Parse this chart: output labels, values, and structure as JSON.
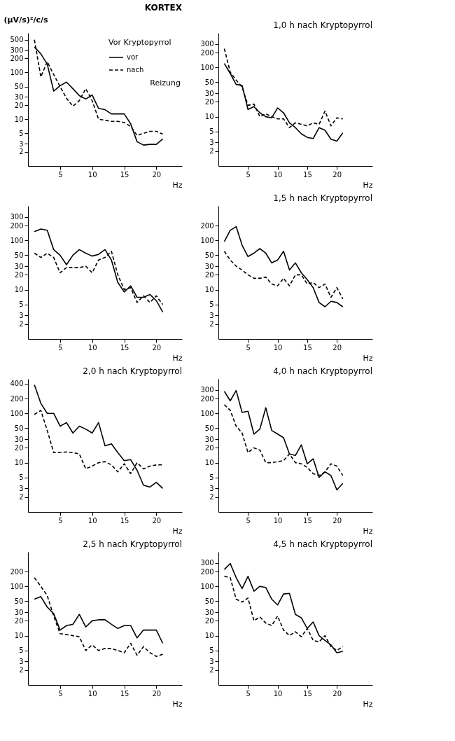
{
  "chart_data": [
    {
      "type": "line",
      "title": "KORTEX",
      "ylabel": "(µV/s)²/c/s",
      "xlabel": "Hz",
      "legend_title": "Vor Kryptopyrrol",
      "legend": "top right",
      "annotations": [
        "Reizung"
      ],
      "log": true,
      "grid": false,
      "x": [
        1,
        2,
        3,
        4,
        5,
        6,
        7,
        8,
        9,
        10,
        11,
        12,
        13,
        14,
        15,
        16,
        17,
        18,
        19,
        20,
        21
      ],
      "xlim": [
        0,
        24
      ],
      "xticks": [
        5,
        10,
        15,
        20
      ],
      "ylim": [
        1,
        700
      ],
      "yticks": [
        2,
        3,
        5,
        10,
        20,
        30,
        50,
        100,
        200,
        300,
        500
      ],
      "series": [
        {
          "name": "vor",
          "color": "#000000",
          "line_style": "solid",
          "values": [
            350,
            250,
            150,
            40,
            52,
            62,
            45,
            32,
            27,
            33,
            17,
            16,
            13,
            13,
            13,
            8,
            3.3,
            2.8,
            2.9,
            2.9,
            3.8
          ]
        },
        {
          "name": "nach",
          "color": "#000000",
          "line_style": "dashed",
          "values": [
            500,
            80,
            170,
            90,
            50,
            28,
            19,
            25,
            45,
            25,
            10,
            9.5,
            9,
            9,
            8.5,
            7,
            4.5,
            5,
            5.5,
            5.5,
            4.8
          ]
        }
      ]
    },
    {
      "type": "line",
      "title": "1,0 h nach Kryptopyrrol",
      "xlabel": "Hz",
      "log": true,
      "grid": false,
      "x": [
        1,
        2,
        3,
        4,
        5,
        6,
        7,
        8,
        9,
        10,
        11,
        12,
        13,
        14,
        15,
        16,
        17,
        18,
        19,
        20,
        21
      ],
      "xlim": [
        0,
        26
      ],
      "xticks": [
        5,
        10,
        15,
        20
      ],
      "ylim": [
        1,
        500
      ],
      "yticks": [
        2,
        3,
        5,
        10,
        20,
        30,
        50,
        100,
        200,
        300
      ],
      "series": [
        {
          "color": "#000000",
          "line_style": "solid",
          "values": [
            120,
            75,
            45,
            43,
            14,
            16,
            12,
            10,
            9.5,
            15,
            12,
            7.5,
            6,
            4.5,
            3.8,
            3.6,
            6,
            5.3,
            3.5,
            3.2,
            4.7
          ]
        },
        {
          "color": "#000000",
          "line_style": "dashed",
          "values": [
            240,
            80,
            55,
            40,
            17,
            18,
            10,
            11.5,
            10,
            9,
            9,
            6,
            7.5,
            7,
            6.5,
            7.5,
            7,
            13,
            6.5,
            9.5,
            9
          ]
        }
      ]
    },
    {
      "type": "line",
      "xlabel": "Hz",
      "log": true,
      "grid": false,
      "x": [
        1,
        2,
        3,
        4,
        5,
        6,
        7,
        8,
        9,
        10,
        11,
        12,
        13,
        14,
        15,
        16,
        17,
        18,
        19,
        20,
        21
      ],
      "xlim": [
        0,
        24
      ],
      "xticks": [
        5,
        10,
        15,
        20
      ],
      "ylim": [
        1,
        500
      ],
      "yticks": [
        2,
        3,
        5,
        10,
        20,
        30,
        50,
        100,
        200,
        300
      ],
      "series": [
        {
          "color": "#000000",
          "line_style": "solid",
          "values": [
            150,
            170,
            160,
            65,
            50,
            32,
            50,
            65,
            55,
            48,
            52,
            65,
            40,
            14,
            9,
            12,
            7,
            7,
            8,
            6,
            3.5
          ]
        },
        {
          "color": "#000000",
          "line_style": "dashed",
          "values": [
            55,
            45,
            55,
            45,
            22,
            28,
            28,
            28,
            30,
            22,
            40,
            45,
            60,
            20,
            10,
            11,
            5.5,
            7.5,
            5.5,
            7.5,
            5
          ]
        }
      ]
    },
    {
      "type": "line",
      "title": "1,5 h nach Kryptopyrrol",
      "xlabel": "Hz",
      "log": true,
      "grid": false,
      "x": [
        1,
        2,
        3,
        4,
        5,
        6,
        7,
        8,
        9,
        10,
        11,
        12,
        13,
        14,
        15,
        16,
        17,
        18,
        19,
        20,
        21
      ],
      "xlim": [
        0,
        26
      ],
      "xticks": [
        5,
        10,
        15,
        20
      ],
      "ylim": [
        1,
        500
      ],
      "yticks": [
        2,
        3,
        5,
        10,
        20,
        30,
        50,
        100,
        200
      ],
      "series": [
        {
          "color": "#000000",
          "line_style": "solid",
          "values": [
            95,
            160,
            190,
            80,
            47,
            55,
            68,
            55,
            35,
            40,
            60,
            25,
            35,
            22,
            16,
            11,
            5.5,
            4.5,
            5.8,
            5.5,
            4.5
          ]
        },
        {
          "color": "#000000",
          "line_style": "dashed",
          "values": [
            60,
            40,
            30,
            25,
            20,
            17,
            17,
            18,
            13,
            12,
            17,
            12,
            20,
            20,
            13,
            14,
            11,
            13,
            7,
            11,
            6.5
          ]
        }
      ]
    },
    {
      "type": "line",
      "title": "2,0 h nach Kryptopyrrol",
      "xlabel": "Hz",
      "log": true,
      "grid": false,
      "x": [
        1,
        2,
        3,
        4,
        5,
        6,
        7,
        8,
        9,
        10,
        11,
        12,
        13,
        14,
        15,
        16,
        17,
        18,
        19,
        20,
        21
      ],
      "xlim": [
        0,
        24
      ],
      "xticks": [
        5,
        10,
        15,
        20
      ],
      "ylim": [
        1,
        500
      ],
      "yticks": [
        2,
        3,
        5,
        10,
        20,
        30,
        50,
        100,
        200,
        400
      ],
      "series": [
        {
          "color": "#000000",
          "line_style": "solid",
          "values": [
            380,
            160,
            100,
            100,
            55,
            65,
            40,
            55,
            48,
            40,
            65,
            22,
            24,
            16,
            11,
            11.5,
            7,
            3.5,
            3.2,
            4,
            3
          ]
        },
        {
          "color": "#000000",
          "line_style": "dashed",
          "values": [
            95,
            115,
            45,
            16,
            16,
            16.5,
            16,
            15,
            7.5,
            8.5,
            10,
            10.5,
            9,
            6.5,
            9.5,
            6,
            10,
            7.5,
            8.5,
            9,
            9
          ]
        }
      ]
    },
    {
      "type": "line",
      "title": "4,0 h nach Kryptopyrrol",
      "xlabel": "Hz",
      "log": true,
      "grid": false,
      "x": [
        1,
        2,
        3,
        4,
        5,
        6,
        7,
        8,
        9,
        10,
        11,
        12,
        13,
        14,
        15,
        16,
        17,
        18,
        19,
        20,
        21
      ],
      "xlim": [
        0,
        26
      ],
      "xticks": [
        5,
        10,
        15,
        20
      ],
      "ylim": [
        1,
        500
      ],
      "yticks": [
        2,
        3,
        5,
        10,
        20,
        30,
        50,
        100,
        200,
        300
      ],
      "series": [
        {
          "color": "#000000",
          "line_style": "solid",
          "values": [
            280,
            180,
            290,
            105,
            110,
            38,
            48,
            130,
            45,
            38,
            32,
            15,
            14,
            23,
            9.5,
            12,
            5,
            6.5,
            5.5,
            2.8,
            3.8
          ]
        },
        {
          "color": "#000000",
          "line_style": "dashed",
          "values": [
            150,
            115,
            55,
            40,
            16,
            20,
            18,
            10,
            10,
            10.5,
            11,
            15,
            10,
            9.5,
            8,
            6,
            5.5,
            6.5,
            9.5,
            8.5,
            5.5
          ]
        }
      ]
    },
    {
      "type": "line",
      "title": "2,5 h nach Kryptopyrrol",
      "xlabel": "Hz",
      "log": true,
      "grid": false,
      "x": [
        1,
        2,
        3,
        4,
        5,
        6,
        7,
        8,
        9,
        10,
        11,
        12,
        13,
        14,
        15,
        16,
        17,
        18,
        19,
        20,
        21
      ],
      "xlim": [
        0,
        24
      ],
      "xticks": [
        5,
        10,
        15,
        20
      ],
      "ylim": [
        1,
        500
      ],
      "yticks": [
        2,
        3,
        5,
        10,
        20,
        30,
        50,
        100,
        200
      ],
      "series": [
        {
          "color": "#000000",
          "line_style": "solid",
          "values": [
            55,
            62,
            38,
            28,
            13,
            16,
            17,
            27,
            15,
            20,
            21,
            21,
            17,
            14,
            16,
            16,
            9,
            13,
            13,
            13,
            7
          ]
        },
        {
          "color": "#000000",
          "line_style": "dashed",
          "values": [
            150,
            100,
            65,
            25,
            11,
            10.5,
            10,
            9.5,
            5,
            6.5,
            5,
            5.5,
            5.5,
            5,
            4.5,
            7,
            4,
            6,
            4.5,
            3.8,
            4.2
          ]
        }
      ]
    },
    {
      "type": "line",
      "title": "4,5 h nach Kryptopyrrol",
      "xlabel": "Hz",
      "log": true,
      "grid": false,
      "x": [
        1,
        2,
        3,
        4,
        5,
        6,
        7,
        8,
        9,
        10,
        11,
        12,
        13,
        14,
        15,
        16,
        17,
        18,
        19,
        20,
        21
      ],
      "xlim": [
        0,
        26
      ],
      "xticks": [
        5,
        10,
        15,
        20
      ],
      "ylim": [
        1,
        500
      ],
      "yticks": [
        2,
        3,
        5,
        10,
        20,
        30,
        50,
        100,
        200,
        300
      ],
      "series": [
        {
          "color": "#000000",
          "line_style": "solid",
          "values": [
            220,
            290,
            150,
            90,
            160,
            80,
            100,
            95,
            55,
            42,
            70,
            72,
            27,
            23,
            14,
            19,
            10,
            8,
            6.5,
            4.5,
            4.8
          ]
        },
        {
          "color": "#000000",
          "line_style": "dashed",
          "values": [
            160,
            150,
            55,
            48,
            58,
            20,
            24,
            18,
            16,
            25,
            13,
            10,
            12,
            9.5,
            14,
            8,
            7.5,
            10,
            6,
            5,
            6
          ]
        }
      ]
    }
  ]
}
